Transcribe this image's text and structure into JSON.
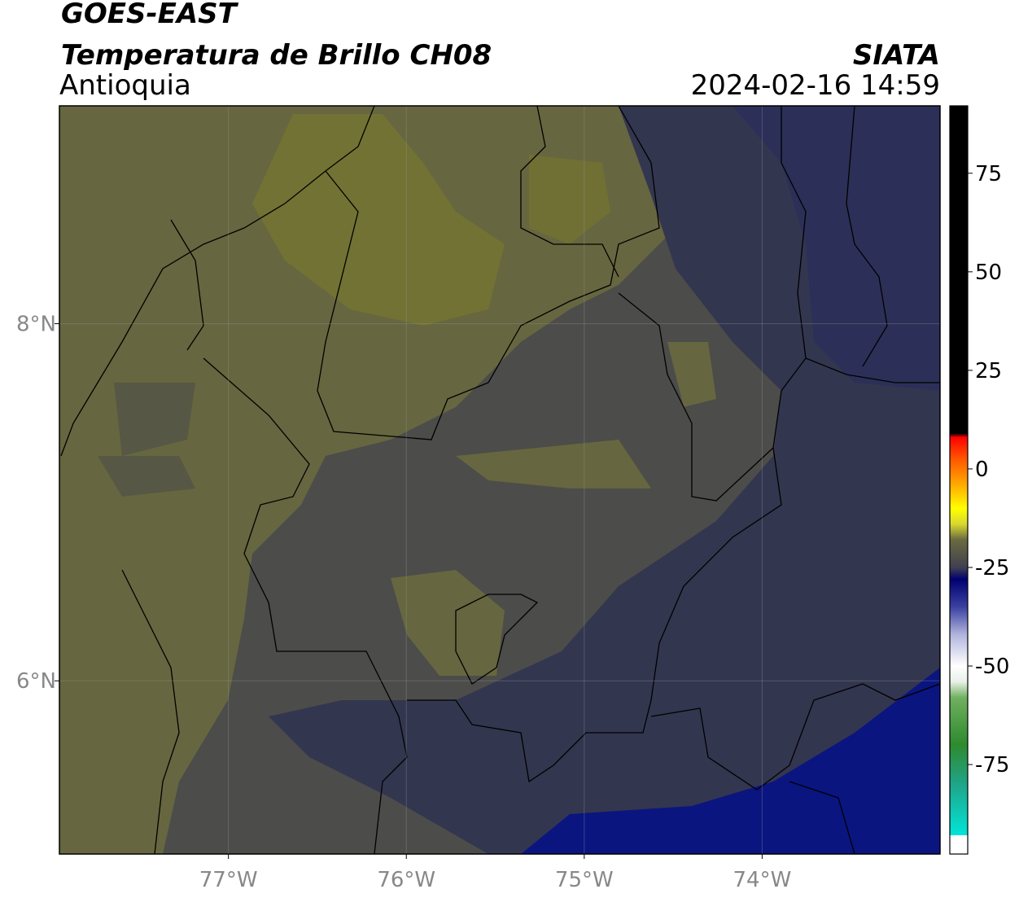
{
  "header": {
    "satellite": "GOES-EAST",
    "product": "Temperatura de Brillo CH08",
    "region": "Antioquia",
    "source": "SIATA",
    "datetime": "2024-02-16 14:59"
  },
  "map": {
    "lon_lim": [
      -77.95,
      -73.0
    ],
    "lat_lim": [
      5.03,
      9.22
    ],
    "lon_ticks": [
      {
        "value": -77,
        "label": "77°W"
      },
      {
        "value": -76,
        "label": "76°W"
      },
      {
        "value": -75,
        "label": "75°W"
      },
      {
        "value": -74,
        "label": "74°W"
      }
    ],
    "lat_ticks": [
      {
        "value": 8,
        "label": "8°N"
      },
      {
        "value": 6,
        "label": "6°N"
      }
    ],
    "grid": true
  },
  "colorbar": {
    "lim": [
      -97.7,
      92.1
    ],
    "ticks": [
      75,
      50,
      25,
      0,
      -25,
      -50,
      -75
    ],
    "stops": [
      [
        -97.7,
        "#ffffff"
      ],
      [
        -93,
        "#ffffff"
      ],
      [
        -93,
        "#00e5d8"
      ],
      [
        -80,
        "#1fa58a"
      ],
      [
        -70,
        "#2e8a2e"
      ],
      [
        -58,
        "#70b060"
      ],
      [
        -54,
        "#e8f0e8"
      ],
      [
        -50,
        "#ffffff"
      ],
      [
        -42,
        "#b0b4dc"
      ],
      [
        -35,
        "#3a40a0"
      ],
      [
        -28,
        "#000070"
      ],
      [
        -25,
        "#404050"
      ],
      [
        -18,
        "#6a6a40"
      ],
      [
        -14,
        "#d8d830"
      ],
      [
        -10,
        "#ffff00"
      ],
      [
        -4,
        "#ffaa00"
      ],
      [
        3,
        "#ff5000"
      ],
      [
        8,
        "#ff0000"
      ],
      [
        9,
        "#000000"
      ],
      [
        92.1,
        "#000000"
      ]
    ]
  }
}
